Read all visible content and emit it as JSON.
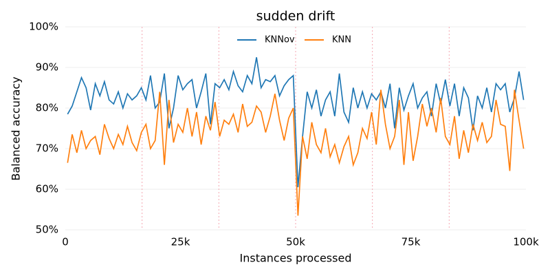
{
  "chart_data": {
    "type": "line",
    "title": "sudden drift",
    "x_label": "Instances processed",
    "y_label": "Balanced accuracy",
    "x": [
      500,
      1500,
      2500,
      3500,
      4500,
      5500,
      6500,
      7500,
      8500,
      9500,
      10500,
      11500,
      12500,
      13500,
      14500,
      15500,
      16500,
      17500,
      18500,
      19500,
      20500,
      21500,
      22500,
      23500,
      24500,
      25500,
      26500,
      27500,
      28500,
      29500,
      30500,
      31500,
      32500,
      33500,
      34500,
      35500,
      36500,
      37500,
      38500,
      39500,
      40500,
      41500,
      42500,
      43500,
      44500,
      45500,
      46500,
      47500,
      48500,
      49500,
      50500,
      51500,
      52500,
      53500,
      54500,
      55500,
      56500,
      57500,
      58500,
      59500,
      60500,
      61500,
      62500,
      63500,
      64500,
      65500,
      66500,
      67500,
      68500,
      69500,
      70500,
      71500,
      72500,
      73500,
      74500,
      75500,
      76500,
      77500,
      78500,
      79500,
      80500,
      81500,
      82500,
      83500,
      84500,
      85500,
      86500,
      87500,
      88500,
      89500,
      90500,
      91500,
      92500,
      93500,
      94500,
      95500,
      96500,
      97500,
      98500,
      99500
    ],
    "series": [
      {
        "name": "KNNov",
        "color": "#1f77b4",
        "values": [
          78.5,
          80.5,
          84,
          87.5,
          85,
          79.5,
          86,
          83,
          86.5,
          82,
          81,
          84,
          80,
          83.5,
          82,
          83,
          85,
          82,
          88,
          80,
          81.5,
          88.5,
          75,
          80,
          88,
          84.5,
          86,
          87,
          80,
          84,
          88.5,
          76,
          86,
          85,
          87,
          84.5,
          89,
          85.5,
          84,
          88,
          86,
          92.5,
          85,
          87,
          86.5,
          88,
          83,
          85.5,
          87,
          88,
          60.5,
          73,
          84,
          80,
          84.5,
          78,
          82,
          84,
          78,
          88.5,
          79,
          76.5,
          85,
          80,
          84,
          80,
          83.5,
          82,
          84,
          80,
          86,
          75,
          85,
          79.5,
          83,
          86,
          80,
          82.5,
          84,
          78,
          86,
          81,
          87,
          80.5,
          86,
          78,
          85,
          82.5,
          74.5,
          83,
          80,
          85,
          79,
          86,
          84.5,
          86,
          79,
          82.5,
          89,
          82
        ]
      },
      {
        "name": "KNN",
        "color": "#ff7f0e",
        "values": [
          66.5,
          73.5,
          69,
          74.5,
          70,
          72,
          73,
          68.5,
          76,
          72.5,
          70,
          73.5,
          71,
          75.5,
          71.5,
          69.5,
          74,
          76,
          70,
          72,
          84,
          66,
          82,
          71.5,
          76,
          74,
          80,
          73,
          79,
          71,
          78,
          74.5,
          81.5,
          73,
          77,
          76,
          78.5,
          74,
          81,
          75.5,
          76.5,
          80.5,
          79,
          74,
          78,
          83.5,
          77,
          72,
          77.5,
          80,
          53.5,
          73,
          67.5,
          76.5,
          71,
          69,
          75,
          68,
          71,
          66.5,
          70.5,
          73,
          66,
          69,
          75,
          72.5,
          79,
          71,
          84.5,
          76,
          70,
          73,
          82,
          66,
          79,
          67,
          73,
          81,
          75.5,
          80,
          74,
          82.5,
          73,
          71,
          78,
          67.5,
          74.5,
          69,
          76,
          72,
          76.5,
          71.5,
          73,
          82,
          76,
          75.5,
          64.5,
          84.5,
          77,
          70
        ]
      }
    ],
    "drift_points": [
      16667,
      33333,
      50000,
      66667,
      83333
    ],
    "xlim": [
      0,
      100000
    ],
    "xticks": [
      0,
      {
        "value": 25000,
        "label": "25k"
      },
      {
        "value": 50000,
        "label": "50k"
      },
      {
        "value": 75000,
        "label": "75k"
      },
      {
        "value": 100000,
        "label": "100k"
      }
    ],
    "ylim": [
      50,
      100
    ],
    "yticks": [
      {
        "value": 50,
        "label": "50%"
      },
      {
        "value": 60,
        "label": "60%"
      },
      {
        "value": 70,
        "label": "70%"
      },
      {
        "value": 80,
        "label": "80%"
      },
      {
        "value": 90,
        "label": "90%"
      },
      {
        "value": 100,
        "label": "100%"
      }
    ],
    "grid": true,
    "legend": "upper center"
  }
}
